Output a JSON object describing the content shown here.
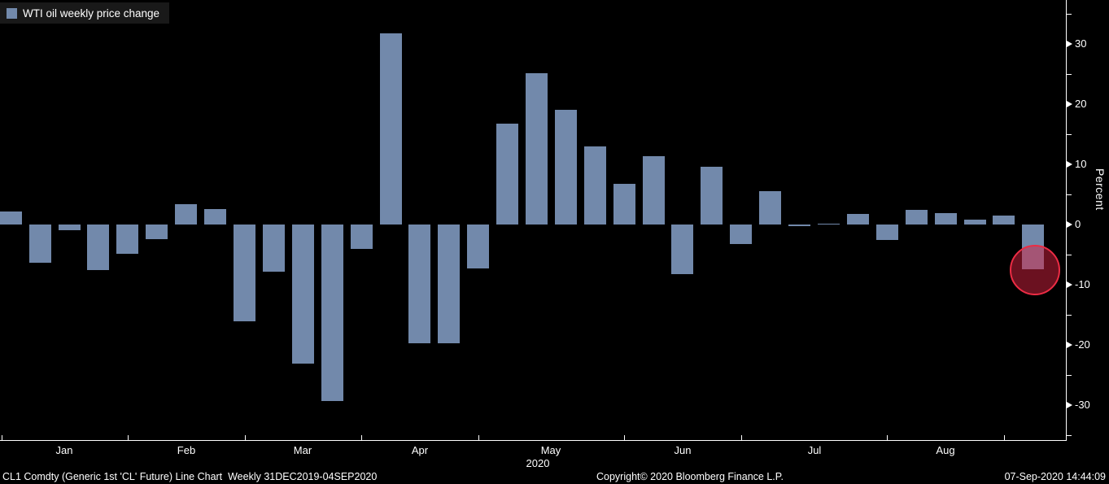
{
  "legend": {
    "label": "WTI oil weekly price change",
    "swatch_color": "#7289ab"
  },
  "y_axis": {
    "title": "Percent",
    "major_ticks": [
      30,
      20,
      10,
      0,
      -10,
      -20,
      -30
    ],
    "minor_ticks": [
      35,
      25,
      15,
      5,
      -5,
      -15,
      -25,
      -35
    ]
  },
  "x_axis": {
    "month_labels": [
      "Jan",
      "Feb",
      "Mar",
      "Apr",
      "May",
      "Jun",
      "Jul",
      "Aug"
    ],
    "weeks_per_month": [
      5,
      4,
      4,
      4,
      5,
      4,
      5,
      4
    ],
    "year": "2020"
  },
  "chart_data": {
    "type": "bar",
    "title": "WTI oil weekly price change",
    "xlabel": "",
    "ylabel": "Percent",
    "x_unit": "week (Dec 31 2019 - Sep 4 2020)",
    "ylim": [
      -36,
      37
    ],
    "grid": false,
    "legend_position": "top-left",
    "bar_color": "#7289ab",
    "values": [
      2.2,
      -6.4,
      -0.9,
      -7.5,
      -4.9,
      -2.4,
      3.4,
      2.6,
      -16.1,
      -7.8,
      -23.1,
      -29.3,
      -4.1,
      31.8,
      -19.7,
      -19.7,
      -7.3,
      16.8,
      25.1,
      19.0,
      13.0,
      6.7,
      11.4,
      -8.3,
      9.6,
      -3.2,
      5.6,
      -0.3,
      0.1,
      1.7,
      -2.5,
      2.4,
      1.9,
      0.8,
      1.5,
      -7.4
    ]
  },
  "highlight": {
    "target": "last-bar",
    "fill_color": "#d62240",
    "border_color": "#ec2c44"
  },
  "footer": {
    "left": "CL1 Comdty (Generic 1st 'CL' Future) Line Chart  Weekly 31DEC2019-04SEP2020",
    "center": "Copyright© 2020 Bloomberg Finance L.P.",
    "right": "07-Sep-2020 14:44:09"
  }
}
